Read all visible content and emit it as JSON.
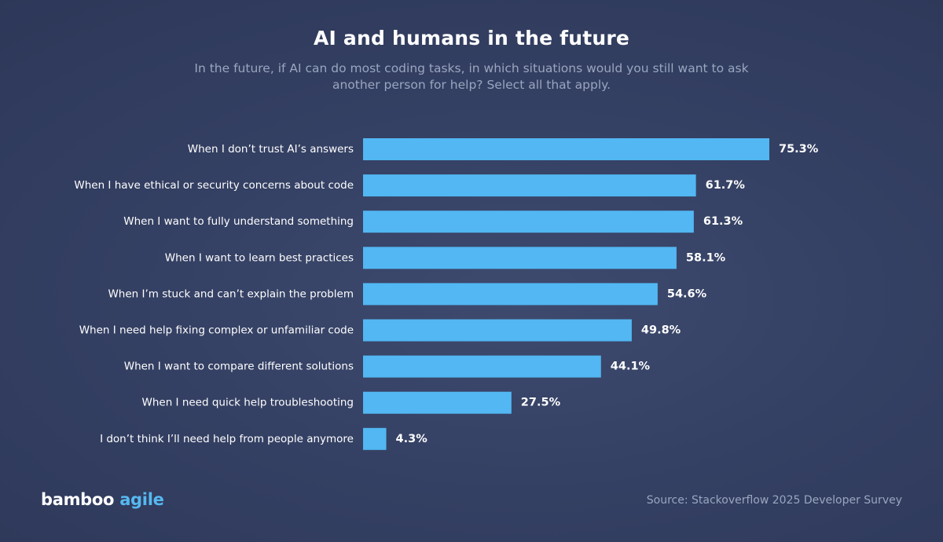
{
  "header": {
    "title": "AI and humans in the future",
    "subtitle": "In the future, if AI can do most coding tasks, in which situations would you still want to ask another person for help? Select all that apply."
  },
  "chart_data": {
    "type": "bar",
    "orientation": "horizontal",
    "title": "AI and humans in the future",
    "subtitle": "In the future, if AI can do most coding tasks, in which situations would you still want to ask another person for help? Select all that apply.",
    "categories": [
      "When I don’t trust AI’s answers",
      "When I have ethical or security concerns about code",
      "When I want to fully understand something",
      "When I want to learn best practices",
      "When I’m stuck and can’t explain the problem",
      "When I need help fixing complex or unfamiliar code",
      "When I want to compare different solutions",
      "When I need quick help troubleshooting",
      "I don’t think I’ll need help from people anymore"
    ],
    "values": [
      75.3,
      61.7,
      61.3,
      58.1,
      54.6,
      49.8,
      44.1,
      27.5,
      4.3
    ],
    "value_labels": [
      "75.3%",
      "61.7%",
      "61.3%",
      "58.1%",
      "54.6%",
      "49.8%",
      "44.1%",
      "27.5%",
      "4.3%"
    ],
    "unit": "%",
    "xlim": [
      0,
      75.3
    ],
    "grid": false,
    "legend": "none",
    "bar_color": "#52b7f2"
  },
  "footer": {
    "logo_part1": "bamboo",
    "logo_part2": "agile",
    "source": "Source: Stackoverflow 2025 Developer Survey"
  },
  "colors": {
    "background": "#344063",
    "bar": "#52b7f2",
    "logo_accent": "#56b8f0",
    "muted_text": "#9aa5bf"
  }
}
